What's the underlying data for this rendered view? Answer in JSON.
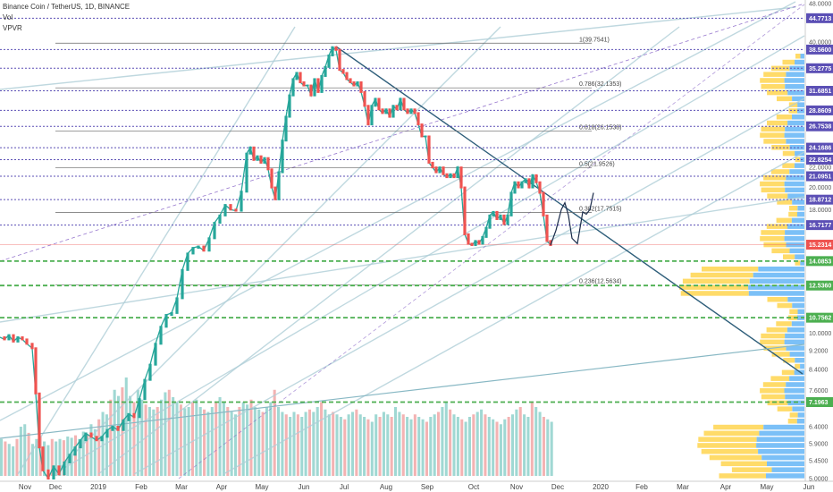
{
  "header": {
    "title": "Binance Coin / TetherUS, 1D, BINANCE",
    "indicator_1": "Vol",
    "indicator_2": "VPVR"
  },
  "chart_data": {
    "type": "candlestick",
    "y_scale": "log",
    "ylim": [
      5.0,
      48.0
    ],
    "y_ticks": [
      "48.0000",
      "44.7713",
      "40.0000",
      "38.5600",
      "35.2775",
      "31.6851",
      "28.8609",
      "26.7538",
      "24.1686",
      "22.8254",
      "22.0000",
      "21.0951",
      "20.0000",
      "18.8712",
      "18.0000",
      "16.7177",
      "15.2314",
      "14.0853",
      "12.5360",
      "10.7562",
      "10.0000",
      "9.2000",
      "8.4000",
      "7.6000",
      "7.1963",
      "6.4000",
      "5.9000",
      "5.4500",
      "5.0000"
    ],
    "x_ticks": [
      "Nov",
      "Dec",
      "2019",
      "Feb",
      "Mar",
      "Apr",
      "May",
      "Jun",
      "Jul",
      "Aug",
      "Sep",
      "Oct",
      "Nov",
      "Dec",
      "2020",
      "Feb",
      "Mar",
      "Apr",
      "May",
      "Jun"
    ],
    "price_levels": [
      {
        "label": "44.7713",
        "value": 44.7713,
        "color": "#5b4fb5"
      },
      {
        "label": "38.5600",
        "value": 38.56,
        "color": "#5b4fb5"
      },
      {
        "label": "35.2775",
        "value": 35.2775,
        "color": "#5b4fb5"
      },
      {
        "label": "31.6851",
        "value": 31.6851,
        "color": "#5b4fb5"
      },
      {
        "label": "28.8609",
        "value": 28.8609,
        "color": "#5b4fb5"
      },
      {
        "label": "26.7538",
        "value": 26.7538,
        "color": "#5b4fb5"
      },
      {
        "label": "24.1686",
        "value": 24.1686,
        "color": "#5b4fb5"
      },
      {
        "label": "22.8254",
        "value": 22.8254,
        "color": "#5b4fb5"
      },
      {
        "label": "21.0951",
        "value": 21.0951,
        "color": "#5b4fb5"
      },
      {
        "label": "18.8712",
        "value": 18.8712,
        "color": "#5b4fb5"
      },
      {
        "label": "16.7177",
        "value": 16.7177,
        "color": "#5b4fb5"
      },
      {
        "label": "15.2314",
        "value": 15.2314,
        "color": "#ef5350"
      },
      {
        "label": "14.0853",
        "value": 14.0853,
        "color": "#4caf50"
      },
      {
        "label": "12.5360",
        "value": 12.536,
        "color": "#4caf50"
      },
      {
        "label": "10.7562",
        "value": 10.7562,
        "color": "#4caf50"
      },
      {
        "label": "7.1963",
        "value": 7.1963,
        "color": "#4caf50"
      }
    ],
    "fib_levels": [
      {
        "label": "1(39.7541)",
        "value": 39.7541
      },
      {
        "label": "0.786(32.1353)",
        "value": 32.1353
      },
      {
        "label": "0.618(26.1538)",
        "value": 26.1538
      },
      {
        "label": "0.5(21.9526)",
        "value": 21.9526
      },
      {
        "label": "0.382(17.7515)",
        "value": 17.7515
      },
      {
        "label": "0.236(12.5634)",
        "value": 12.5634
      }
    ],
    "price_path": [
      [
        0,
        9.8
      ],
      [
        5,
        9.7
      ],
      [
        10,
        9.9
      ],
      [
        15,
        9.6
      ],
      [
        20,
        9.8
      ],
      [
        25,
        9.7
      ],
      [
        30,
        9.5
      ],
      [
        36,
        9.3
      ],
      [
        40,
        7.5
      ],
      [
        44,
        5.8
      ],
      [
        48,
        5.2
      ],
      [
        54,
        5.0
      ],
      [
        60,
        5.3
      ],
      [
        66,
        5.1
      ],
      [
        72,
        5.4
      ],
      [
        78,
        5.6
      ],
      [
        84,
        5.8
      ],
      [
        90,
        6.0
      ],
      [
        96,
        6.2
      ],
      [
        102,
        6.1
      ],
      [
        108,
        6.0
      ],
      [
        114,
        6.1
      ],
      [
        120,
        6.3
      ],
      [
        126,
        6.4
      ],
      [
        132,
        6.3
      ],
      [
        138,
        6.6
      ],
      [
        144,
        6.8
      ],
      [
        150,
        6.7
      ],
      [
        156,
        7.3
      ],
      [
        162,
        8.0
      ],
      [
        168,
        8.6
      ],
      [
        174,
        9.5
      ],
      [
        180,
        10.3
      ],
      [
        186,
        10.9
      ],
      [
        192,
        11.0
      ],
      [
        198,
        11.8
      ],
      [
        204,
        13.5
      ],
      [
        210,
        14.6
      ],
      [
        216,
        15.0
      ],
      [
        222,
        15.1
      ],
      [
        228,
        14.8
      ],
      [
        234,
        15.7
      ],
      [
        240,
        16.9
      ],
      [
        246,
        17.5
      ],
      [
        252,
        18.4
      ],
      [
        258,
        18.0
      ],
      [
        264,
        17.9
      ],
      [
        270,
        19.6
      ],
      [
        276,
        23.5
      ],
      [
        280,
        24.2
      ],
      [
        284,
        22.8
      ],
      [
        288,
        23.2
      ],
      [
        292,
        22.5
      ],
      [
        296,
        23.0
      ],
      [
        300,
        21.8
      ],
      [
        304,
        20.0
      ],
      [
        308,
        18.9
      ],
      [
        312,
        21.5
      ],
      [
        316,
        25.0
      ],
      [
        320,
        28.0
      ],
      [
        324,
        31.0
      ],
      [
        328,
        33.5
      ],
      [
        332,
        34.5
      ],
      [
        336,
        33.0
      ],
      [
        340,
        32.5
      ],
      [
        344,
        32.5
      ],
      [
        348,
        31.0
      ],
      [
        352,
        33.5
      ],
      [
        356,
        31.5
      ],
      [
        360,
        34.0
      ],
      [
        364,
        35.5
      ],
      [
        368,
        37.5
      ],
      [
        372,
        39.0
      ],
      [
        376,
        38.5
      ],
      [
        380,
        35.0
      ],
      [
        384,
        34.5
      ],
      [
        388,
        33.5
      ],
      [
        392,
        33.0
      ],
      [
        396,
        32.5
      ],
      [
        400,
        33.0
      ],
      [
        404,
        31.5
      ],
      [
        408,
        29.5
      ],
      [
        412,
        27.0
      ],
      [
        416,
        29.5
      ],
      [
        420,
        30.5
      ],
      [
        424,
        29.0
      ],
      [
        428,
        28.5
      ],
      [
        432,
        29.0
      ],
      [
        436,
        28.0
      ],
      [
        440,
        29.5
      ],
      [
        444,
        29.0
      ],
      [
        448,
        30.5
      ],
      [
        452,
        29.0
      ],
      [
        456,
        28.5
      ],
      [
        460,
        29.0
      ],
      [
        464,
        28.5
      ],
      [
        468,
        27.0
      ],
      [
        472,
        25.5
      ],
      [
        476,
        25.5
      ],
      [
        480,
        22.5
      ],
      [
        484,
        22.0
      ],
      [
        488,
        21.5
      ],
      [
        492,
        22.0
      ],
      [
        496,
        21.3
      ],
      [
        500,
        21.0
      ],
      [
        504,
        21.3
      ],
      [
        508,
        21.0
      ],
      [
        512,
        22.0
      ],
      [
        516,
        20.0
      ],
      [
        520,
        16.0
      ],
      [
        524,
        15.3
      ],
      [
        528,
        15.2
      ],
      [
        532,
        15.5
      ],
      [
        536,
        15.3
      ],
      [
        540,
        15.8
      ],
      [
        544,
        16.5
      ],
      [
        548,
        17.5
      ],
      [
        552,
        17.8
      ],
      [
        556,
        17.2
      ],
      [
        560,
        17.5
      ],
      [
        564,
        16.8
      ],
      [
        568,
        17.5
      ],
      [
        572,
        19.5
      ],
      [
        576,
        20.5
      ],
      [
        580,
        20.0
      ],
      [
        584,
        20.5
      ],
      [
        588,
        20.8
      ],
      [
        592,
        20.0
      ],
      [
        596,
        21.2
      ],
      [
        600,
        20.5
      ],
      [
        604,
        19.5
      ],
      [
        608,
        17.5
      ],
      [
        612,
        15.5
      ],
      [
        616,
        15.2
      ]
    ],
    "projection_path": [
      [
        616,
        15.2
      ],
      [
        622,
        16.3
      ],
      [
        628,
        18.0
      ],
      [
        632,
        18.6
      ],
      [
        636,
        17.5
      ],
      [
        640,
        15.7
      ],
      [
        646,
        15.3
      ],
      [
        652,
        17.8
      ],
      [
        656,
        17.6
      ],
      [
        660,
        18.0
      ],
      [
        664,
        19.5
      ]
    ],
    "volume": [
      300,
      280,
      260,
      240,
      300,
      400,
      420,
      350,
      260,
      300,
      320,
      280,
      250,
      300,
      280,
      300,
      290,
      320,
      310,
      330,
      300,
      360,
      340,
      420,
      380,
      460,
      520,
      500,
      620,
      700,
      650,
      720,
      800,
      650,
      600,
      700,
      620,
      580,
      560,
      540,
      560,
      620,
      680,
      700,
      640,
      600,
      580,
      550,
      560,
      600,
      620,
      560,
      540,
      520,
      560,
      600,
      640,
      600,
      560,
      520,
      500,
      560,
      600,
      580,
      620,
      560,
      540,
      520,
      560,
      600,
      700,
      560,
      520,
      500,
      480,
      520,
      500,
      480,
      520,
      540,
      520,
      560,
      600,
      540,
      500,
      520,
      500,
      480,
      460,
      500,
      520,
      540,
      500,
      480,
      460,
      440,
      500,
      480,
      520,
      500,
      480,
      560,
      520,
      500,
      480,
      460,
      500,
      480,
      460,
      440,
      480,
      500,
      520,
      560,
      600,
      540,
      500,
      480,
      460,
      440,
      480,
      500,
      520,
      540,
      500,
      480,
      460,
      440,
      420,
      460,
      480,
      500,
      540,
      560,
      500,
      480,
      600,
      560,
      520,
      480,
      460,
      440
    ]
  }
}
